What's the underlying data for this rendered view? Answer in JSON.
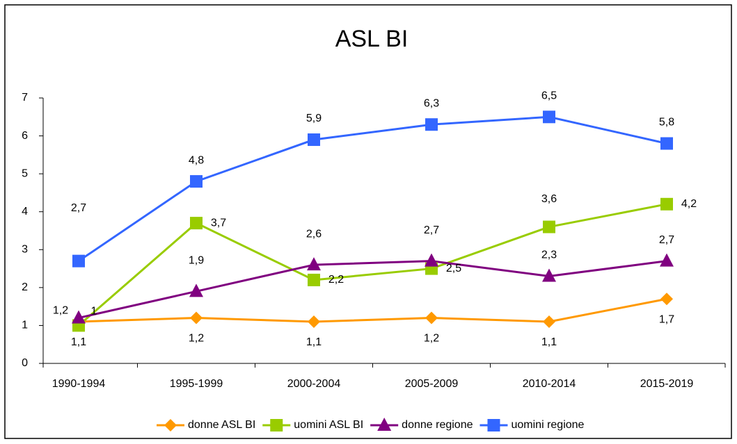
{
  "chart_data": {
    "type": "line",
    "title": "ASL BI",
    "categories": [
      "1990-1994",
      "1995-1999",
      "2000-2004",
      "2005-2009",
      "2010-2014",
      "2015-2019"
    ],
    "series": [
      {
        "name": "donne ASL BI",
        "color": "#ff9900",
        "marker": "diamond",
        "values": [
          1.1,
          1.2,
          1.1,
          1.2,
          1.1,
          1.7
        ],
        "value_labels": [
          "1,1",
          "1,2",
          "1,1",
          "1,2",
          "1,1",
          "1,7"
        ]
      },
      {
        "name": "uomini ASL BI",
        "color": "#99cc00",
        "marker": "square",
        "values": [
          1,
          3.7,
          2.2,
          2.5,
          3.6,
          4.2
        ],
        "value_labels": [
          "1",
          "3,7",
          "2,2",
          "2,5",
          "3,6",
          "4,2"
        ]
      },
      {
        "name": "donne regione",
        "color": "#800080",
        "marker": "triangle",
        "values": [
          1.2,
          1.9,
          2.6,
          2.7,
          2.3,
          2.7
        ],
        "value_labels": [
          "1,2",
          "1,9",
          "2,6",
          "2,7",
          "2,3",
          "2,7"
        ]
      },
      {
        "name": "uomini regione",
        "color": "#3366ff",
        "marker": "square",
        "values": [
          2.7,
          4.8,
          5.9,
          6.3,
          6.5,
          5.8
        ],
        "value_labels": [
          "2,7",
          "4,8",
          "5,9",
          "6,3",
          "6,5",
          "5,8"
        ]
      }
    ],
    "ylim": [
      0,
      7
    ],
    "yticks": [
      0,
      1,
      2,
      3,
      4,
      5,
      6,
      7
    ],
    "legend": "bottom"
  }
}
